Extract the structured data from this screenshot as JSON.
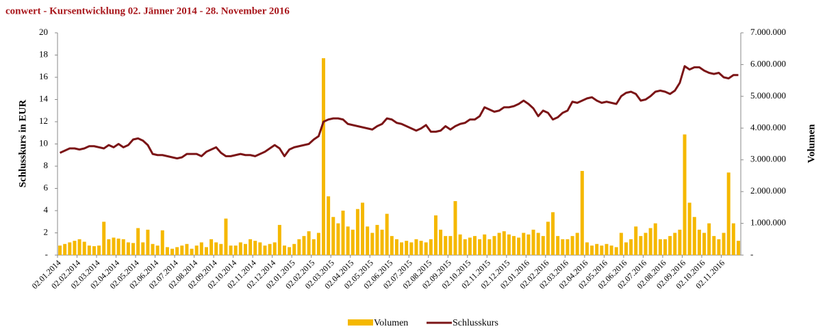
{
  "chart_data": {
    "type": "combo",
    "title": "conwert - Kursentwicklung  02. Jänner 2014 - 28. November 2016",
    "y_label": "Schlusskurs in EUR",
    "y2_label": "Volumen",
    "categories": [
      "02.01.2014",
      null,
      null,
      null,
      "02.02.2014",
      null,
      null,
      null,
      "02.03.2014",
      null,
      null,
      null,
      "02.04.2014",
      null,
      null,
      null,
      "02.05.2014",
      null,
      null,
      null,
      "02.06.2014",
      null,
      null,
      null,
      "02.07.2014",
      null,
      null,
      null,
      "02.08.2014",
      null,
      null,
      null,
      "02.09.2014",
      null,
      null,
      null,
      "02.10.2014",
      null,
      null,
      null,
      "02.11.2014",
      null,
      null,
      null,
      "02.12.2014",
      null,
      null,
      null,
      "02.01.2015",
      null,
      null,
      null,
      "02.02.2015",
      null,
      null,
      null,
      "02.03.2015",
      null,
      null,
      null,
      "02.04.2015",
      null,
      null,
      null,
      "02.05.2015",
      null,
      null,
      null,
      "02.06.2015",
      null,
      null,
      null,
      "02.07.2015",
      null,
      null,
      null,
      "02.08.2015",
      null,
      null,
      null,
      "02.09.2015",
      null,
      null,
      null,
      "02.10.2015",
      null,
      null,
      null,
      "02.11.2015",
      null,
      null,
      null,
      "02.12.2015",
      null,
      null,
      null,
      "02.01.2016",
      null,
      null,
      null,
      "02.02.2016",
      null,
      null,
      null,
      "02.03.2016",
      null,
      null,
      null,
      "02.04.2016",
      null,
      null,
      null,
      "02.05.2016",
      null,
      null,
      null,
      "02.06.2016",
      null,
      null,
      null,
      "02.07.2016",
      null,
      null,
      null,
      "02.08.2016",
      null,
      null,
      null,
      "02.09.2016",
      null,
      null,
      null,
      "02.10.2016",
      null,
      null,
      null,
      "02.11.2016",
      null,
      null,
      null
    ],
    "series": [
      {
        "name": "Volumen",
        "type": "bar",
        "axis": "y2",
        "color": "#f5b800",
        "values": [
          300000,
          350000,
          400000,
          450000,
          500000,
          420000,
          300000,
          280000,
          300000,
          1050000,
          500000,
          550000,
          520000,
          500000,
          400000,
          380000,
          850000,
          400000,
          800000,
          350000,
          300000,
          780000,
          250000,
          200000,
          250000,
          300000,
          350000,
          200000,
          300000,
          400000,
          250000,
          500000,
          400000,
          350000,
          1150000,
          300000,
          300000,
          400000,
          350000,
          500000,
          450000,
          400000,
          300000,
          350000,
          400000,
          950000,
          300000,
          250000,
          350000,
          500000,
          600000,
          750000,
          500000,
          700000,
          6200000,
          1850000,
          1200000,
          1000000,
          1400000,
          900000,
          800000,
          1450000,
          1650000,
          900000,
          700000,
          950000,
          800000,
          1300000,
          600000,
          500000,
          400000,
          450000,
          400000,
          500000,
          450000,
          400000,
          500000,
          1250000,
          800000,
          600000,
          600000,
          1700000,
          650000,
          500000,
          550000,
          600000,
          500000,
          650000,
          500000,
          600000,
          700000,
          750000,
          650000,
          600000,
          550000,
          700000,
          650000,
          800000,
          700000,
          600000,
          1050000,
          1350000,
          600000,
          500000,
          500000,
          600000,
          700000,
          2650000,
          400000,
          300000,
          350000,
          300000,
          350000,
          300000,
          250000,
          700000,
          400000,
          500000,
          900000,
          600000,
          700000,
          850000,
          1000000,
          500000,
          500000,
          600000,
          700000,
          800000,
          3800000,
          1650000,
          1200000,
          800000,
          700000,
          1000000,
          600000,
          500000,
          700000,
          2600000,
          1000000,
          450000
        ]
      },
      {
        "name": "Schlusskurs",
        "type": "line",
        "color": "#7b1416",
        "values": [
          9.2,
          9.4,
          9.6,
          9.6,
          9.5,
          9.6,
          9.8,
          9.8,
          9.7,
          9.6,
          9.9,
          9.7,
          10.0,
          9.7,
          9.9,
          10.4,
          10.5,
          10.3,
          9.9,
          9.1,
          9.0,
          9.0,
          8.9,
          8.8,
          8.7,
          8.8,
          9.1,
          9.1,
          9.1,
          8.9,
          9.3,
          9.5,
          9.7,
          9.2,
          8.9,
          8.9,
          9.0,
          9.1,
          9.0,
          9.0,
          8.9,
          9.1,
          9.3,
          9.6,
          9.9,
          9.6,
          8.9,
          9.5,
          9.7,
          9.8,
          9.9,
          10.0,
          10.4,
          10.7,
          12.0,
          12.2,
          12.3,
          12.3,
          12.2,
          11.8,
          11.7,
          11.6,
          11.5,
          11.4,
          11.3,
          11.6,
          11.8,
          12.3,
          12.2,
          11.9,
          11.8,
          11.6,
          11.4,
          11.2,
          11.4,
          11.7,
          11.1,
          11.1,
          11.2,
          11.6,
          11.3,
          11.6,
          11.8,
          11.9,
          12.2,
          12.2,
          12.5,
          13.3,
          13.1,
          12.9,
          13.0,
          13.3,
          13.3,
          13.4,
          13.6,
          13.9,
          13.6,
          13.2,
          12.5,
          13.0,
          12.8,
          12.2,
          12.4,
          12.8,
          13.0,
          13.8,
          13.7,
          13.9,
          14.1,
          14.2,
          13.9,
          13.7,
          13.8,
          13.7,
          13.6,
          14.3,
          14.6,
          14.7,
          14.5,
          13.9,
          14.0,
          14.3,
          14.7,
          14.8,
          14.7,
          14.5,
          14.8,
          15.5,
          17.0,
          16.7,
          16.9,
          16.9,
          16.6,
          16.4,
          16.3,
          16.4,
          16.0,
          15.9,
          16.2,
          16.2
        ]
      }
    ],
    "ylim": [
      0,
      20
    ],
    "yticks": [
      {
        "value": 0,
        "label": "-"
      },
      2,
      4,
      6,
      8,
      10,
      12,
      14,
      16,
      18,
      20
    ],
    "y2lim": [
      0,
      7000000
    ],
    "y2ticks": [
      {
        "value": 0,
        "label": "-"
      },
      {
        "value": 1000000,
        "label": "1.000.000"
      },
      {
        "value": 2000000,
        "label": "2.000.000"
      },
      {
        "value": 3000000,
        "label": "3.000.000"
      },
      {
        "value": 4000000,
        "label": "4.000.000"
      },
      {
        "value": 5000000,
        "label": "5.000.000"
      },
      {
        "value": 6000000,
        "label": "6.000.000"
      },
      {
        "value": 7000000,
        "label": "7.000.000"
      }
    ],
    "legend": "bottom"
  }
}
